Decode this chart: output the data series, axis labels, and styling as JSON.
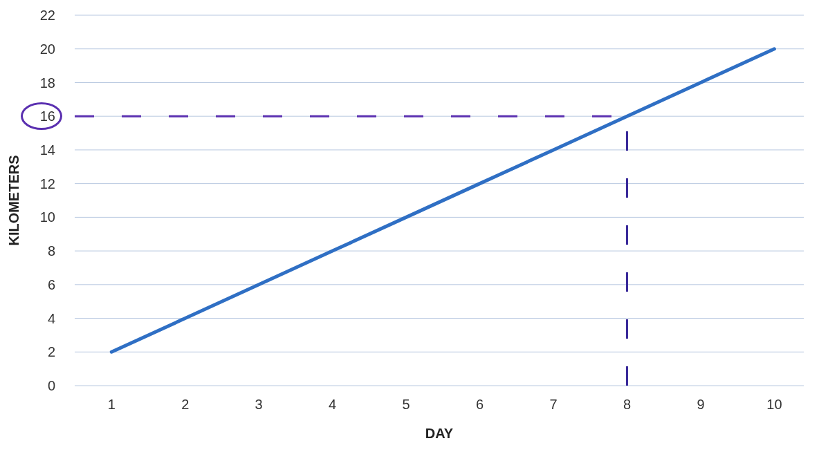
{
  "chart_data": {
    "type": "line",
    "xlabel": "DAY",
    "ylabel": "KILOMETERS",
    "x": [
      1,
      2,
      3,
      4,
      5,
      6,
      7,
      8,
      9,
      10
    ],
    "series": [
      {
        "color": "#2f6fc4",
        "values": [
          2,
          4,
          6,
          8,
          10,
          12,
          14,
          16,
          18,
          20
        ]
      }
    ],
    "xlim": [
      0.5,
      10.4
    ],
    "xticks": [
      1,
      2,
      3,
      4,
      5,
      6,
      7,
      8,
      9,
      10
    ],
    "ylim": [
      0,
      22
    ],
    "yticks": [
      0,
      2,
      4,
      6,
      8,
      10,
      12,
      14,
      16,
      18,
      20,
      22
    ],
    "grid": "y",
    "marker": "none",
    "line_style": "solid",
    "ref_lines": [
      {
        "axis": "y",
        "value": 16,
        "color": "#5a2fb0",
        "line_style": "dashed"
      },
      {
        "axis": "x",
        "value": 8,
        "color": "#3a2a9a",
        "line_style": "dashed"
      }
    ]
  }
}
